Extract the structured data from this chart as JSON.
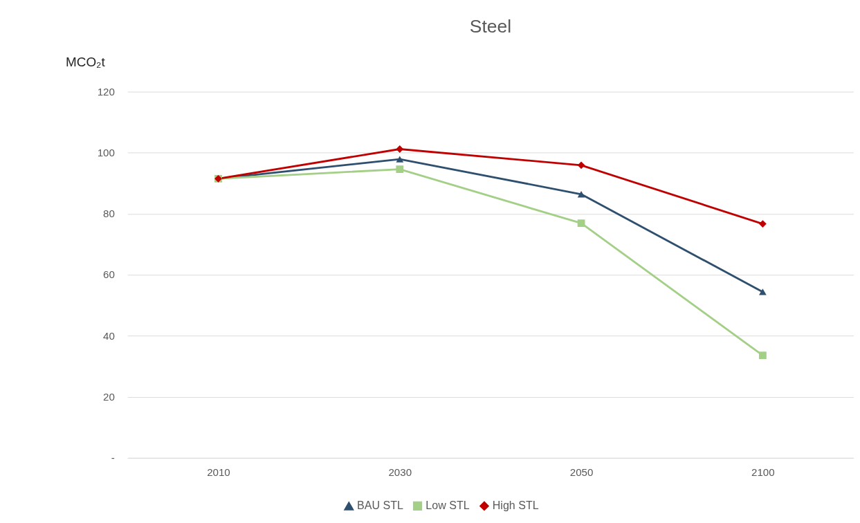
{
  "chart_data": {
    "type": "line",
    "title": "Steel",
    "ylabel": "MCO₂t",
    "categories": [
      "2010",
      "2030",
      "2050",
      "2100"
    ],
    "series": [
      {
        "name": "BAU STL",
        "color": "#2e4f6e",
        "marker": "triangle",
        "values": [
          91.5,
          97.9,
          86.4,
          54.4
        ]
      },
      {
        "name": "Low STL",
        "color": "#a3cf87",
        "marker": "square",
        "values": [
          91.5,
          94.6,
          76.9,
          33.6
        ]
      },
      {
        "name": "High STL",
        "color": "#c00000",
        "marker": "diamond",
        "values": [
          91.5,
          101.2,
          95.9,
          76.7
        ]
      }
    ],
    "ylim": [
      0,
      120
    ],
    "yticks": [
      {
        "value": 0,
        "label": "-"
      },
      20,
      40,
      60,
      80,
      100,
      120
    ],
    "grid": "y",
    "legend": "bottom",
    "line_style": "solid"
  }
}
